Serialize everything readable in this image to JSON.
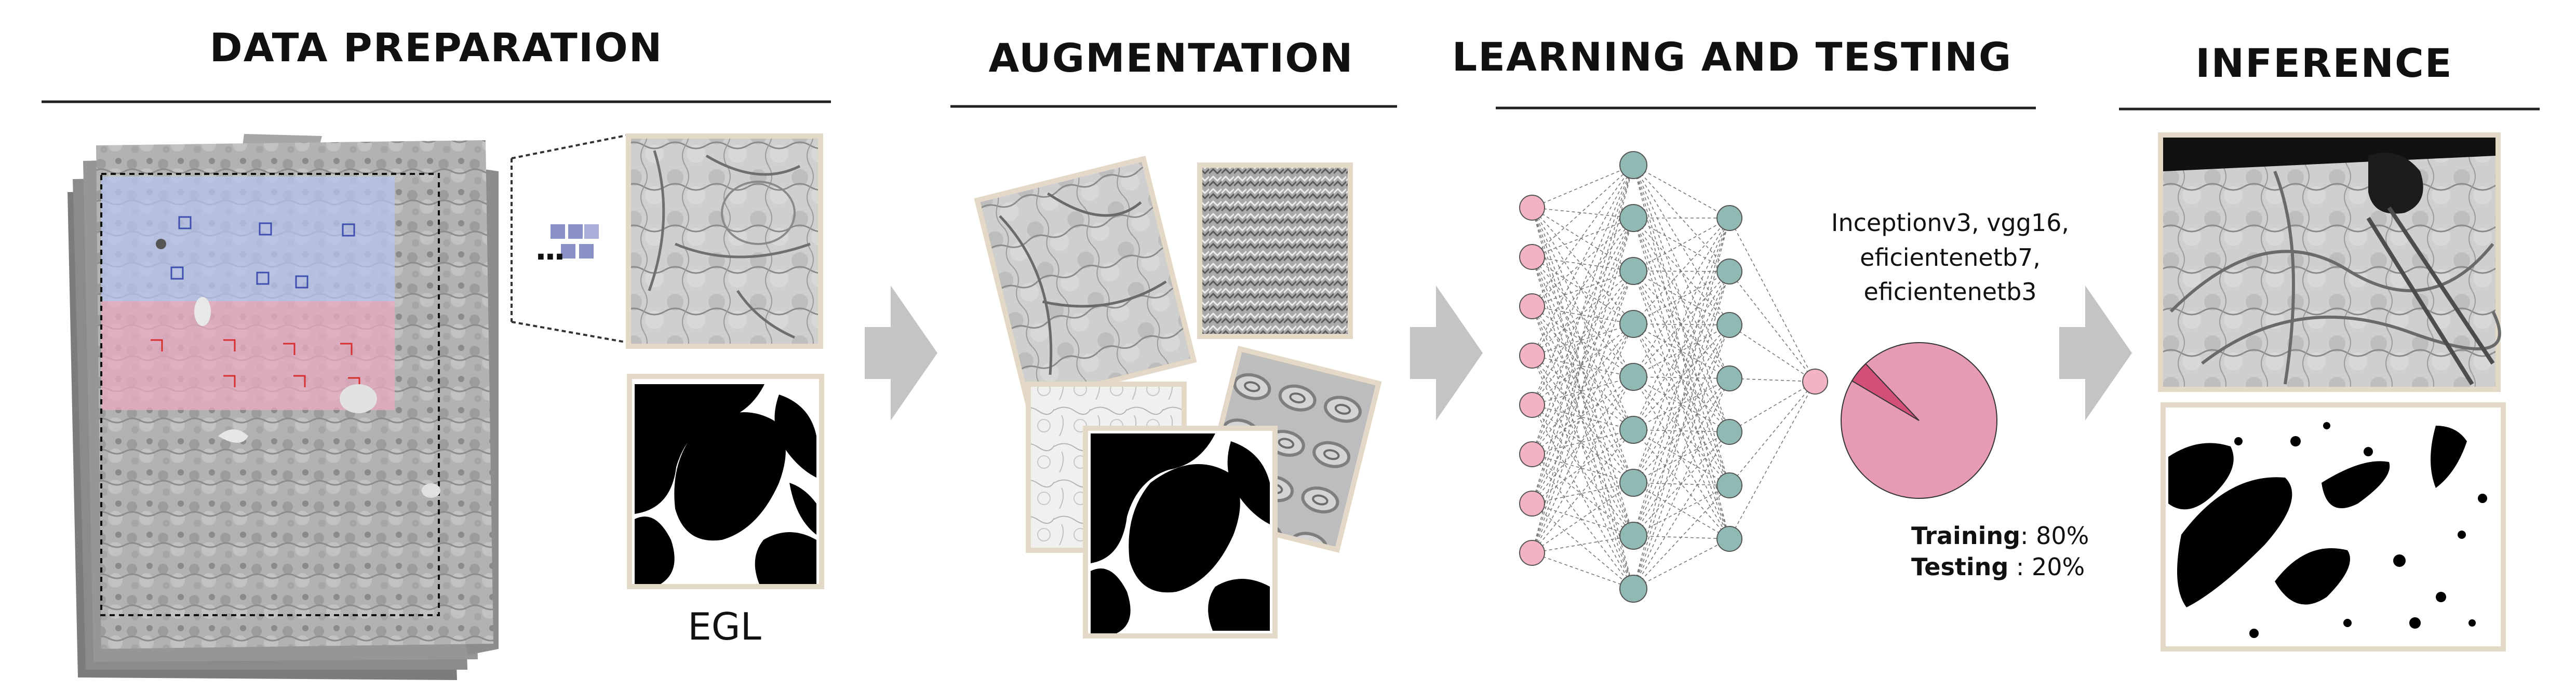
{
  "stages": [
    {
      "id": "data-preparation",
      "title": "DATA PREPARATION"
    },
    {
      "id": "augmentation",
      "title": "AUGMENTATION"
    },
    {
      "id": "learning-and-testing",
      "title": "LEARNING AND TESTING"
    },
    {
      "id": "inference",
      "title": "INFERENCE"
    }
  ],
  "data_preparation": {
    "mask_label": "EGL"
  },
  "learning": {
    "models": [
      "Inceptionv3, vgg16,",
      "eficientenetb7,",
      "eficientenetb3"
    ],
    "training_label": "Training",
    "training_value": ": 80%",
    "testing_label": "Testing",
    "testing_value": " : 20%",
    "split": {
      "training": 80,
      "testing": 20
    }
  },
  "colors": {
    "frame": "#e4d8c8",
    "arrow": "#c4c4c4",
    "node_input": "#f4b3c2",
    "node_hidden": "#8fb9b2",
    "pie_main": "#e69ab3",
    "pie_slice": "#d24f78",
    "region_blue": "#b4c4ec",
    "region_pink": "#e7a9c0"
  }
}
